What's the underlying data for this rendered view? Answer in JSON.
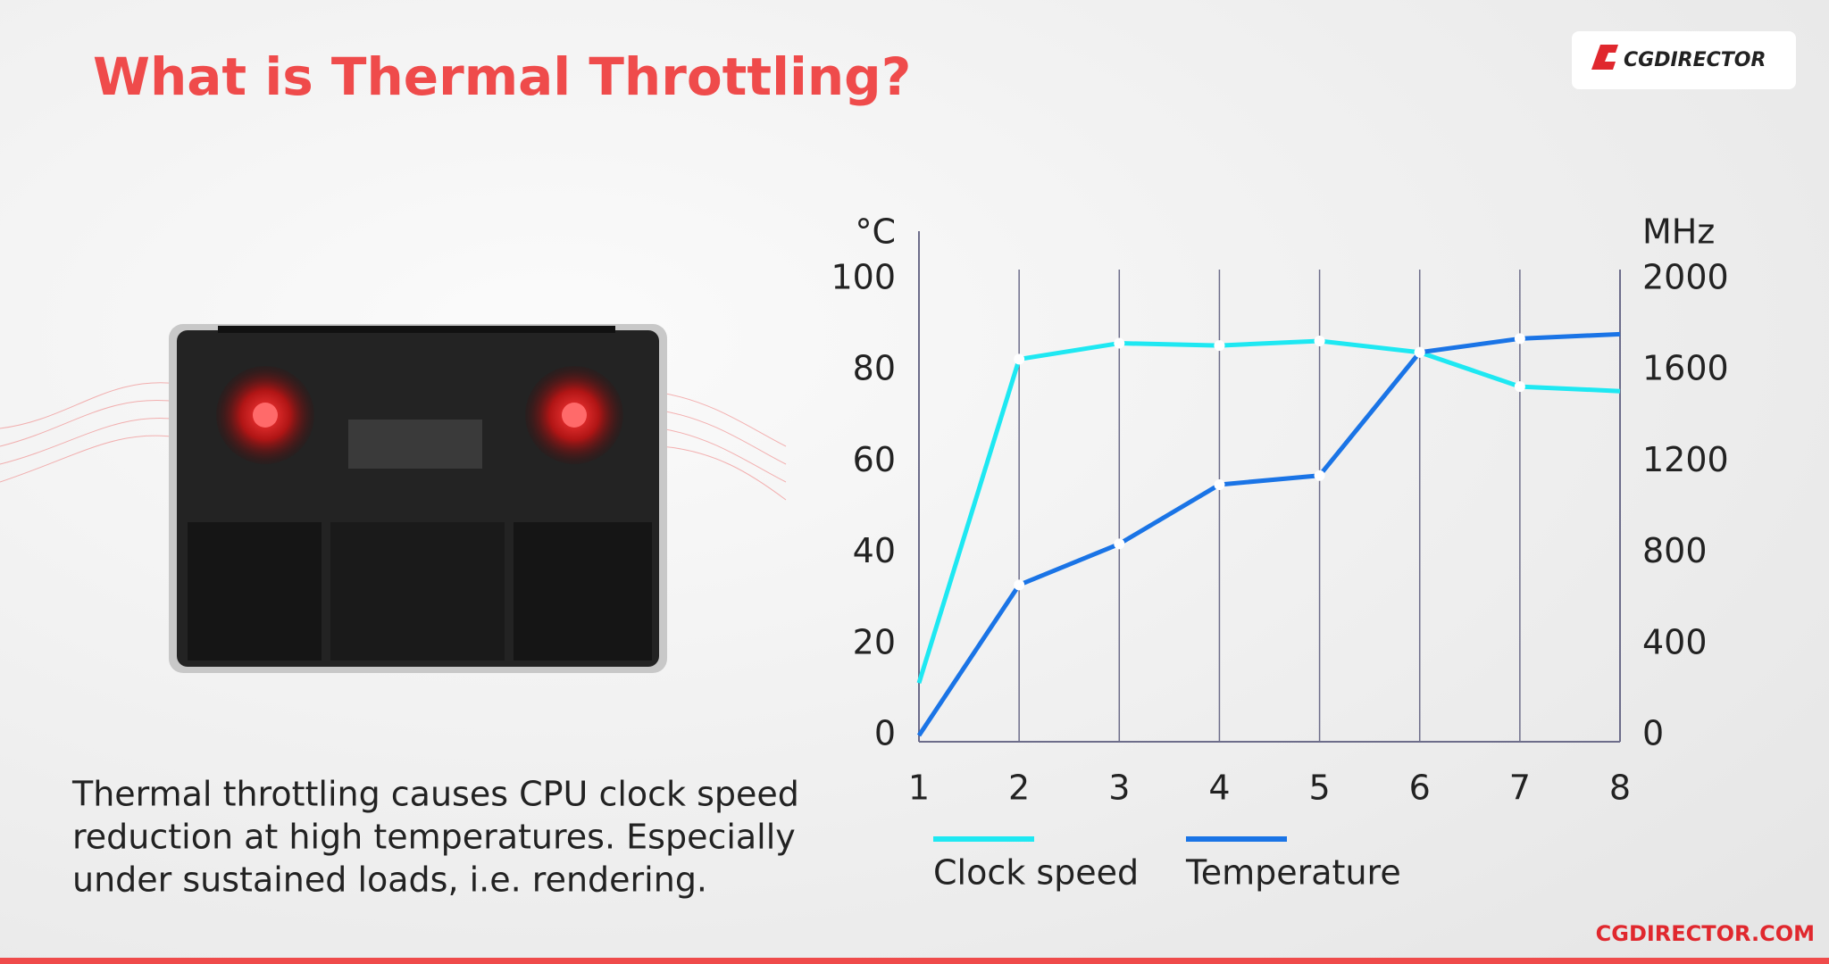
{
  "chart_data": {
    "type": "line",
    "title": "What is Thermal Throttling?",
    "ylabel": "°C",
    "y2label": "MHz",
    "x": [
      1,
      2,
      3,
      4,
      5,
      6,
      7,
      8
    ],
    "xlim": [
      1,
      8
    ],
    "xticks": [
      1,
      2,
      3,
      4,
      5,
      6,
      7,
      8
    ],
    "ylim": [
      0,
      100
    ],
    "yticks": [
      0,
      20,
      40,
      60,
      80,
      100
    ],
    "y2lim": [
      0,
      2000
    ],
    "y2ticks": [
      0,
      400,
      800,
      1200,
      1600,
      2000
    ],
    "series": [
      {
        "name": "Clock speed",
        "color": "#1ee8f2",
        "axis": "y2",
        "values": [
          230,
          1650,
          1720,
          1710,
          1730,
          1680,
          1530,
          1510
        ]
      },
      {
        "name": "Temperature",
        "color": "#1a74e6",
        "values": [
          0,
          33,
          42,
          55,
          57,
          84,
          87,
          88
        ]
      }
    ],
    "grid": true
  },
  "description": [
    "Thermal throttling causes CPU clock speed",
    "reduction at high temperatures. Especially",
    "under sustained loads, i.e. rendering."
  ],
  "brand": {
    "logo": "CGDIRECTOR",
    "site": "CGDIRECTOR.COM"
  }
}
